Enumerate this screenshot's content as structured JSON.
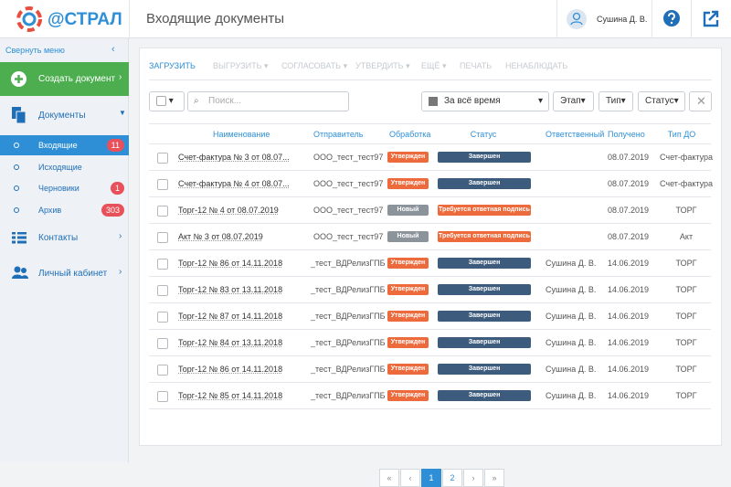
{
  "header": {
    "logo": "@СТРАЛ",
    "title": "Входящие документы",
    "user": "Сушина Д. В."
  },
  "sidebar": {
    "collapse": "Свернуть меню",
    "create": "Создать документ",
    "documents": "Документы",
    "sub": [
      {
        "label": "Входящие",
        "badge": 11
      },
      {
        "label": "Исходящие"
      },
      {
        "label": "Черновики",
        "badge": 1
      },
      {
        "label": "Архив",
        "badge": 303
      }
    ],
    "contacts": "Контакты",
    "cabinet": "Личный кабинет"
  },
  "toolbar": [
    "ЗАГРУЗИТЬ",
    "ВЫГРУЗИТЬ",
    "СОГЛАСОВАТЬ",
    "УТВЕРДИТЬ",
    "ЕЩЁ",
    "ПЕЧАТЬ",
    "НЕНАБЛЮДАТЬ"
  ],
  "filters": {
    "search": "Поиск...",
    "period": "За всё время",
    "stage": "Этап",
    "type": "Тип",
    "status": "Статус"
  },
  "table": {
    "columns": [
      "Наименование",
      "Отправитель",
      "Обработка",
      "Статус",
      "Ответственный",
      "Получено",
      "Тип ДО"
    ],
    "rows": [
      [
        "Счет-фактура № 3 от 08.07...",
        "ООО_тест_тест97",
        "Утвержден",
        "Завершен",
        null,
        "08.07.2019",
        "Счет-фактура"
      ],
      [
        "Счет-фактура № 4 от 08.07...",
        "ООО_тест_тест97",
        "Утвержден",
        "Завершен",
        null,
        "08.07.2019",
        "Счет-фактура"
      ],
      [
        "Торг-12 № 4 от 08.07.2019",
        "ООО_тест_тест97",
        "Новый",
        "Требуется ответная подпись",
        null,
        "08.07.2019",
        "ТОРГ"
      ],
      [
        "Акт № 3 от 08.07.2019",
        "ООО_тест_тест97",
        "Новый",
        "Требуется ответная подпись",
        null,
        "08.07.2019",
        "Акт"
      ],
      [
        "Торг-12 № 86 от 14.11.2018",
        "_тест_ВДРелизГПБ",
        "Утвержден",
        "Завершен",
        "Сушина Д. В.",
        "14.06.2019",
        "ТОРГ"
      ],
      [
        "Торг-12 № 83 от 13.11.2018",
        "_тест_ВДРелизГПБ",
        "Утвержден",
        "Завершен",
        "Сушина Д. В.",
        "14.06.2019",
        "ТОРГ"
      ],
      [
        "Торг-12 № 87 от 14.11.2018",
        "_тест_ВДРелизГПБ",
        "Утвержден",
        "Завершен",
        "Сушина Д. В.",
        "14.06.2019",
        "ТОРГ"
      ],
      [
        "Торг-12 № 84 от 13.11.2018",
        "_тест_ВДРелизГПБ",
        "Утвержден",
        "Завершен",
        "Сушина Д. В.",
        "14.06.2019",
        "ТОРГ"
      ],
      [
        "Торг-12 № 86 от 14.11.2018",
        "_тест_ВДРелизГПБ",
        "Утвержден",
        "Завершен",
        "Сушина Д. В.",
        "14.06.2019",
        "ТОРГ"
      ],
      [
        "Торг-12 № 85 от 14.11.2018",
        "_тест_ВДРелизГПБ",
        "Утвержден",
        "Завершен",
        "Сушина Д. В.",
        "14.06.2019",
        "ТОРГ"
      ]
    ]
  },
  "pagination": [
    "«",
    "‹",
    "1",
    "2",
    "›",
    "»"
  ]
}
